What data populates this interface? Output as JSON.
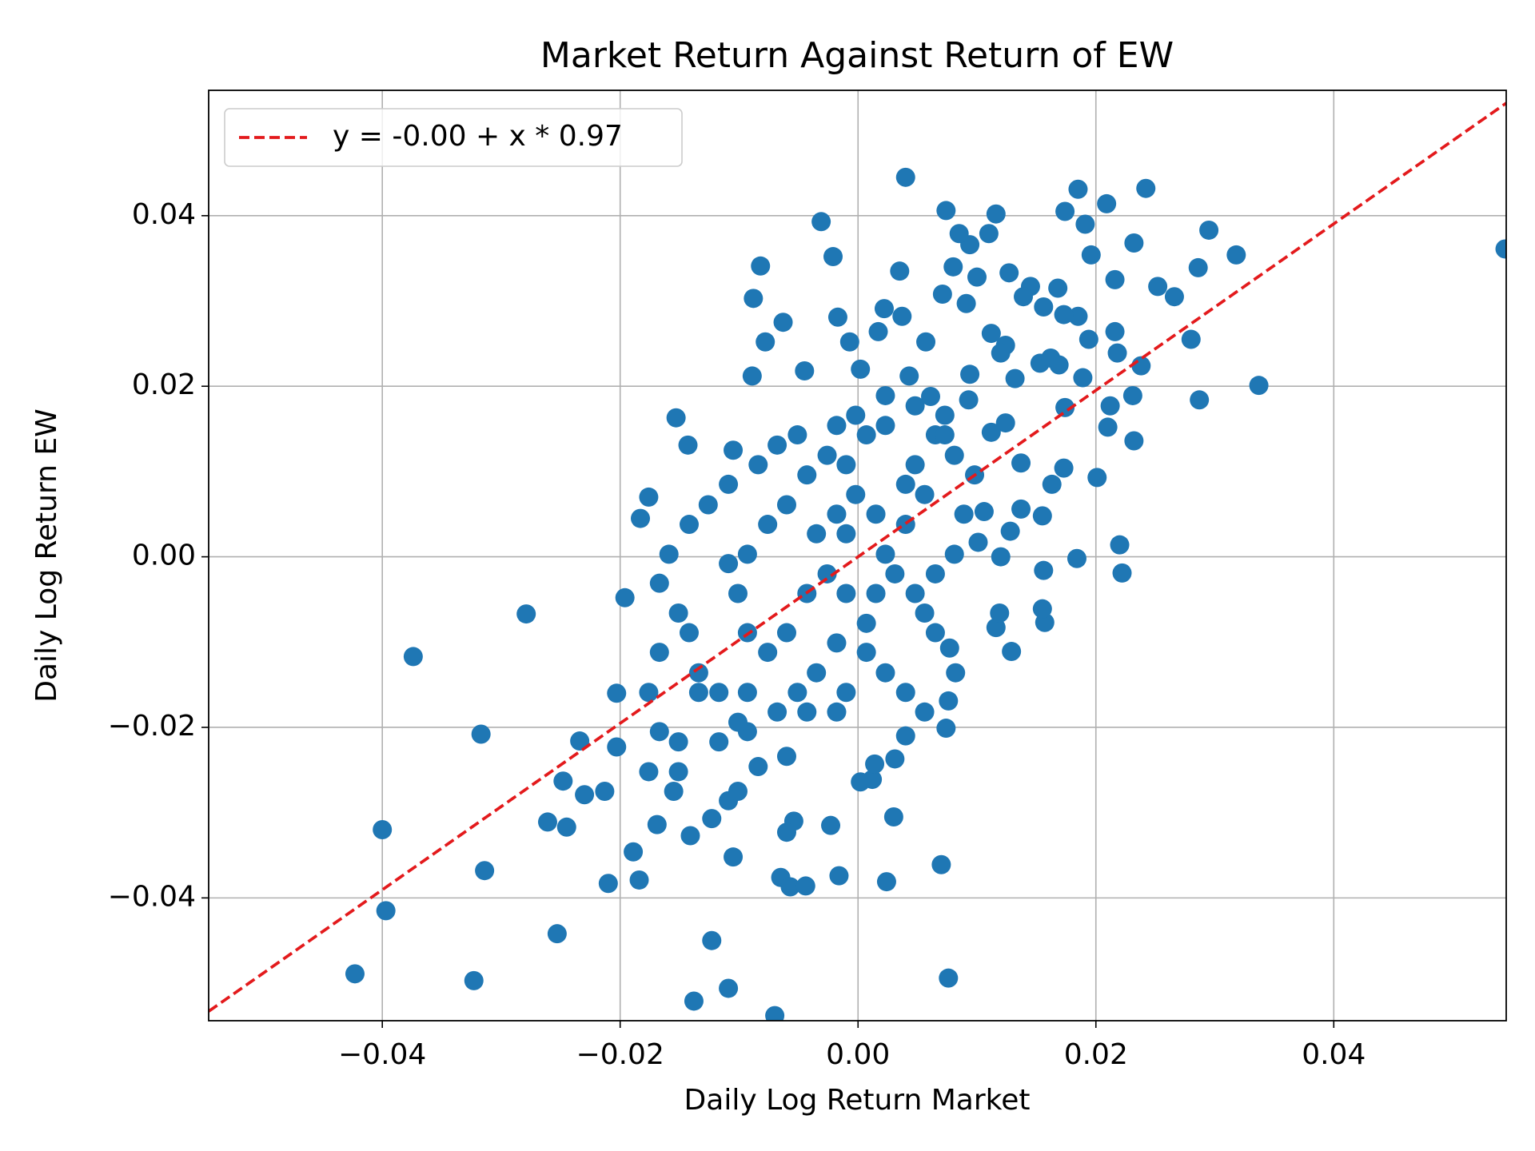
{
  "chart_data": {
    "type": "scatter",
    "title": "Market Return Against Return of EW",
    "x_label": "Daily Log Return Market",
    "y_label": "Daily Log Return EW",
    "xlim": [
      -0.0546,
      0.0545
    ],
    "ylim": [
      -0.0544,
      0.0547
    ],
    "xticks": [
      {
        "value": -0.04,
        "label": "−0.04"
      },
      {
        "value": -0.02,
        "label": "−0.02"
      },
      {
        "value": 0,
        "label": "0.00"
      },
      {
        "value": 0.02,
        "label": "0.02"
      },
      {
        "value": 0.04,
        "label": "0.04"
      }
    ],
    "yticks": [
      {
        "value": -0.04,
        "label": "−0.04"
      },
      {
        "value": -0.02,
        "label": "−0.02"
      },
      {
        "value": 0,
        "label": "0.00"
      },
      {
        "value": 0.02,
        "label": "0.02"
      },
      {
        "value": 0.04,
        "label": "0.04"
      }
    ],
    "grid": true,
    "legend": "upper left",
    "series": [
      {
        "type": "scatter",
        "color": "#1f77b4",
        "x": [
          0.0544,
          -0.0423,
          -0.0323,
          -0.0253,
          -0.0397,
          -0.04,
          -0.0374,
          -0.0279,
          -0.0317,
          -0.0314,
          -0.0138,
          -0.0123,
          -0.0109,
          -0.007,
          0.0076,
          0.004,
          0.0242,
          0.0185,
          0.0295,
          0.0318,
          0.0337,
          0.0287,
          0.0286,
          0.028,
          0.0252,
          0.0266,
          0.0232,
          0.0209,
          0.0174,
          0.0074,
          0.0116,
          -0.0031,
          -0.0021,
          -0.0082,
          -0.0088,
          -0.0063,
          -0.0017,
          -0.0078,
          -0.0089,
          -0.0045,
          -0.0153,
          -0.0143,
          -0.0105,
          -0.0176,
          -0.0183,
          -0.0196,
          -0.0203,
          -0.0203,
          -0.0234,
          -0.0248,
          -0.0213,
          -0.023,
          -0.0261,
          -0.0245,
          -0.0189,
          -0.021,
          -0.0184,
          -0.0169,
          -0.0141,
          -0.0105,
          -0.0123,
          -0.0065,
          -0.0057,
          -0.0044,
          -0.0016,
          0.0024,
          0.007,
          0.003,
          -0.0023,
          -0.0054,
          -0.006,
          0.0002,
          0.0012,
          0.0031,
          0.0014,
          0.004,
          0.0074,
          0.0076,
          0.0082,
          0.0077,
          0.0129,
          0.0116,
          0.0119,
          0.0157,
          0.0155,
          0.0156,
          0.0184,
          0.022,
          0.0222,
          0.0201,
          0.021,
          0.0218,
          0.0232,
          0.0231,
          0.0238,
          0.0216,
          0.0212,
          0.0194,
          0.0189,
          0.0196,
          0.0216,
          0.0191,
          0.0145,
          0.0127,
          0.01,
          0.011,
          0.0094,
          0.0085,
          0.0168,
          0.0185,
          0.0173,
          0.0156,
          0.0139,
          0.0057,
          0.008,
          0.0071,
          0.0035,
          0.0022,
          0.0037,
          -0.0007,
          0.0017,
          0.0002,
          0.0043,
          0.0091,
          0.0112,
          0.0124,
          0.012,
          0.0132,
          0.0153,
          0.0162,
          0.0169,
          0.0174,
          0.0173,
          0.0163,
          0.0155,
          0.0137,
          0.0128,
          0.012,
          0.0106,
          0.0101,
          0.0124,
          0.0112,
          0.0137,
          0.0093,
          0.0094,
          0.0061,
          -0.001,
          -0.0002,
          -0.0018,
          0.0007,
          0.0023,
          -0.0035,
          -0.0043,
          -0.006,
          -0.0076,
          -0.0093,
          -0.0101,
          -0.0109,
          -0.0093,
          -0.0076,
          -0.006,
          -0.0043,
          -0.0026,
          0.0048,
          0.0065,
          0.0073,
          0.0056,
          0.004,
          0.0023,
          0.0015,
          0.0007,
          -0.001,
          -0.0026,
          0.0031,
          0.0048,
          0.0065,
          0.0081,
          0.0089,
          0.0098,
          0.0081,
          -0.0018,
          -0.0035,
          -0.0051,
          -0.0068,
          -0.0093,
          -0.0117,
          -0.0134,
          -0.0142,
          -0.0151,
          -0.0167,
          -0.0159,
          -0.0142,
          -0.0126,
          -0.0109,
          -0.0084,
          -0.0068,
          -0.0051,
          -0.0018,
          -0.0002,
          0.0023,
          0.0048,
          0.0073,
          0.004,
          0.0015,
          -0.001,
          0.0007,
          0.0023,
          0.004,
          0.0056,
          0.0065,
          0.0056,
          -0.001,
          -0.0018,
          -0.0043,
          -0.0167,
          -0.0176,
          -0.0167,
          -0.0151,
          -0.0176,
          -0.0151,
          -0.0155,
          -0.0134,
          -0.0117,
          -0.0093,
          -0.0101,
          -0.0084,
          -0.006,
          -0.0109,
          -0.0101
        ],
        "values": [
          0.0361,
          -0.0489,
          -0.0497,
          -0.0442,
          -0.0415,
          -0.032,
          -0.0117,
          -0.0067,
          -0.0208,
          -0.0368,
          -0.0521,
          -0.045,
          -0.0506,
          -0.0538,
          -0.0494,
          0.0445,
          0.0432,
          0.0431,
          0.0383,
          0.0354,
          0.0201,
          0.0184,
          0.0339,
          0.0255,
          0.0317,
          0.0305,
          0.0368,
          0.0414,
          0.0405,
          0.0406,
          0.0402,
          0.0393,
          0.0352,
          0.0341,
          0.0303,
          0.0275,
          0.0281,
          0.0252,
          0.0212,
          0.0218,
          0.0163,
          0.0131,
          0.0125,
          0.007,
          0.0045,
          -0.0048,
          -0.016,
          -0.0223,
          -0.0216,
          -0.0263,
          -0.0275,
          -0.0279,
          -0.0311,
          -0.0317,
          -0.0346,
          -0.0383,
          -0.0379,
          -0.0314,
          -0.0327,
          -0.0352,
          -0.0307,
          -0.0376,
          -0.0387,
          -0.0386,
          -0.0374,
          -0.0381,
          -0.0361,
          -0.0305,
          -0.0315,
          -0.031,
          -0.0323,
          -0.0264,
          -0.0261,
          -0.0237,
          -0.0243,
          -0.021,
          -0.0201,
          -0.0169,
          -0.0136,
          -0.0107,
          -0.0111,
          -0.0083,
          -0.0066,
          -0.0077,
          -0.0061,
          -0.0016,
          -0.0002,
          0.0014,
          -0.0019,
          0.0093,
          0.0152,
          0.0239,
          0.0136,
          0.0189,
          0.0224,
          0.0264,
          0.0177,
          0.0255,
          0.021,
          0.0354,
          0.0325,
          0.039,
          0.0317,
          0.0333,
          0.0328,
          0.0379,
          0.0366,
          0.0379,
          0.0315,
          0.0282,
          0.0284,
          0.0293,
          0.0305,
          0.0252,
          0.034,
          0.0308,
          0.0335,
          0.0291,
          0.0282,
          0.0252,
          0.0264,
          0.022,
          0.0212,
          0.0297,
          0.0262,
          0.0248,
          0.0239,
          0.0209,
          0.0227,
          0.0233,
          0.0225,
          0.0175,
          0.0104,
          0.0085,
          0.0048,
          0.0056,
          0.003,
          0.0,
          0.0053,
          0.0017,
          0.0157,
          0.0146,
          0.011,
          0.0184,
          0.0214,
          0.0188,
          0.0108,
          0.0073,
          0.005,
          0.0143,
          0.0154,
          0.0027,
          -0.0043,
          -0.0089,
          -0.0112,
          -0.0089,
          -0.0043,
          -0.0008,
          0.0003,
          0.0038,
          0.0061,
          0.0096,
          0.0119,
          0.0108,
          0.0143,
          0.0166,
          0.0073,
          0.0038,
          0.0003,
          -0.0043,
          -0.0078,
          -0.0043,
          -0.002,
          -0.002,
          -0.0043,
          -0.002,
          0.0003,
          0.005,
          0.0096,
          0.0119,
          -0.0101,
          -0.0136,
          -0.0159,
          -0.0182,
          -0.0159,
          -0.0159,
          -0.0136,
          -0.0089,
          -0.0066,
          -0.0031,
          0.0003,
          0.0038,
          0.0061,
          0.0085,
          0.0108,
          0.0131,
          0.0143,
          0.0154,
          0.0166,
          0.0189,
          0.0177,
          0.0143,
          0.0085,
          0.005,
          0.0027,
          -0.0112,
          -0.0136,
          -0.0159,
          -0.0182,
          -0.0089,
          -0.0066,
          -0.0159,
          -0.0182,
          -0.0182,
          -0.0112,
          -0.0159,
          -0.0205,
          -0.0217,
          -0.0252,
          -0.0252,
          -0.0275,
          -0.0159,
          -0.0217,
          -0.0205,
          -0.0194,
          -0.0246,
          -0.0234,
          -0.0286,
          -0.0275
        ]
      },
      {
        "type": "line",
        "name": "y = -0.00 + x * 0.97",
        "color": "#e31a1c",
        "dashed": true,
        "x": [
          -0.0546,
          0.0545
        ],
        "values": [
          -0.0533,
          0.0532
        ]
      }
    ]
  }
}
